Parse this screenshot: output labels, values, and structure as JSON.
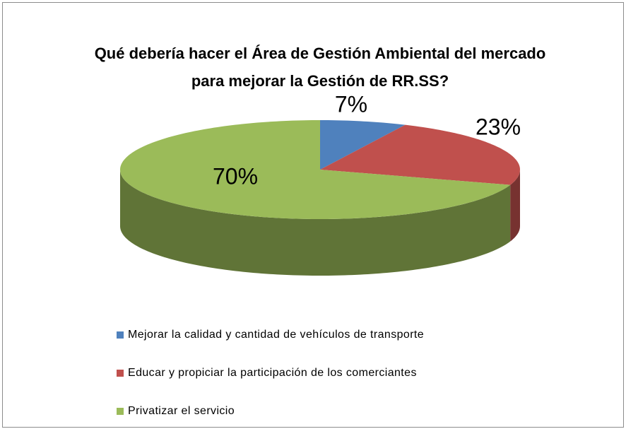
{
  "chart_data": {
    "type": "pie3d",
    "title": "Qué debería hacer el Área de Gestión Ambiental del mercado para mejorar la Gestión de RR.SS?",
    "categories": [
      "Mejorar la calidad y cantidad de vehículos de transporte",
      "Educar y propiciar la participación de los comerciantes",
      "Privatizar el servicio"
    ],
    "values": [
      7,
      23,
      70
    ],
    "value_labels": [
      "7%",
      "23%",
      "70%"
    ],
    "colors": [
      "#4f81bd",
      "#c0504d",
      "#9bbb59"
    ],
    "legend": "bottom"
  }
}
